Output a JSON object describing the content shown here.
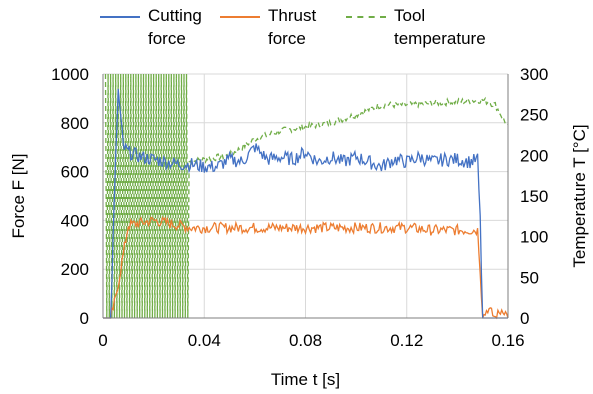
{
  "chart_data": {
    "type": "line",
    "xlabel": "Time t [s]",
    "ylabel": "Force F [N]",
    "y2label": "Temperature T [°C]",
    "xlim": [
      0,
      0.16
    ],
    "ylim": [
      0,
      1000
    ],
    "y2lim": [
      0,
      300
    ],
    "xticks": [
      "0",
      "0.04",
      "0.08",
      "0.12",
      "0.16"
    ],
    "yticks": [
      "0",
      "200",
      "400",
      "600",
      "800",
      "1000"
    ],
    "y2ticks": [
      "0",
      "50",
      "100",
      "150",
      "200",
      "250",
      "300"
    ],
    "grid": true,
    "legend": "top",
    "series": [
      {
        "name": "Cutting\nforce",
        "color": "#4472C4",
        "axis": "left",
        "style": "solid",
        "x": [
          0,
          0.003,
          0.005,
          0.006,
          0.008,
          0.01,
          0.015,
          0.02,
          0.025,
          0.03,
          0.035,
          0.04,
          0.045,
          0.05,
          0.055,
          0.06,
          0.065,
          0.07,
          0.075,
          0.08,
          0.085,
          0.09,
          0.095,
          0.1,
          0.105,
          0.11,
          0.115,
          0.12,
          0.125,
          0.13,
          0.135,
          0.14,
          0.145,
          0.148,
          0.149,
          0.15,
          0.151,
          0.155,
          0.16
        ],
        "y": [
          0,
          0,
          650,
          930,
          700,
          680,
          660,
          650,
          640,
          630,
          630,
          620,
          620,
          650,
          640,
          700,
          650,
          660,
          650,
          680,
          640,
          660,
          640,
          660,
          640,
          620,
          650,
          640,
          660,
          640,
          650,
          650,
          640,
          650,
          400,
          0,
          0,
          0,
          0
        ],
        "noise": 28
      },
      {
        "name": "Thrust\nforce",
        "color": "#ED7D31",
        "axis": "left",
        "style": "solid",
        "x": [
          0,
          0.003,
          0.005,
          0.007,
          0.01,
          0.015,
          0.02,
          0.025,
          0.03,
          0.035,
          0.04,
          0.05,
          0.06,
          0.07,
          0.08,
          0.09,
          0.1,
          0.11,
          0.12,
          0.13,
          0.14,
          0.148,
          0.149,
          0.15,
          0.152,
          0.155,
          0.158,
          0.16
        ],
        "y": [
          0,
          0,
          80,
          200,
          380,
          390,
          400,
          390,
          380,
          370,
          370,
          370,
          370,
          370,
          370,
          370,
          370,
          370,
          370,
          360,
          360,
          360,
          200,
          0,
          40,
          0,
          40,
          0
        ],
        "noise": 22
      },
      {
        "name": "Tool\ntemperature",
        "color": "#70AD47",
        "axis": "right",
        "style": "dashed",
        "x": [
          0.001,
          0.01,
          0.02,
          0.03,
          0.04,
          0.05,
          0.06,
          0.07,
          0.08,
          0.09,
          0.1,
          0.11,
          0.12,
          0.13,
          0.14,
          0.15,
          0.155,
          0.16
        ],
        "y": [
          150,
          150,
          180,
          190,
          195,
          200,
          220,
          230,
          235,
          240,
          250,
          262,
          262,
          264,
          266,
          268,
          262,
          235
        ],
        "noise": 4,
        "osc_until": 0.034
      }
    ]
  }
}
